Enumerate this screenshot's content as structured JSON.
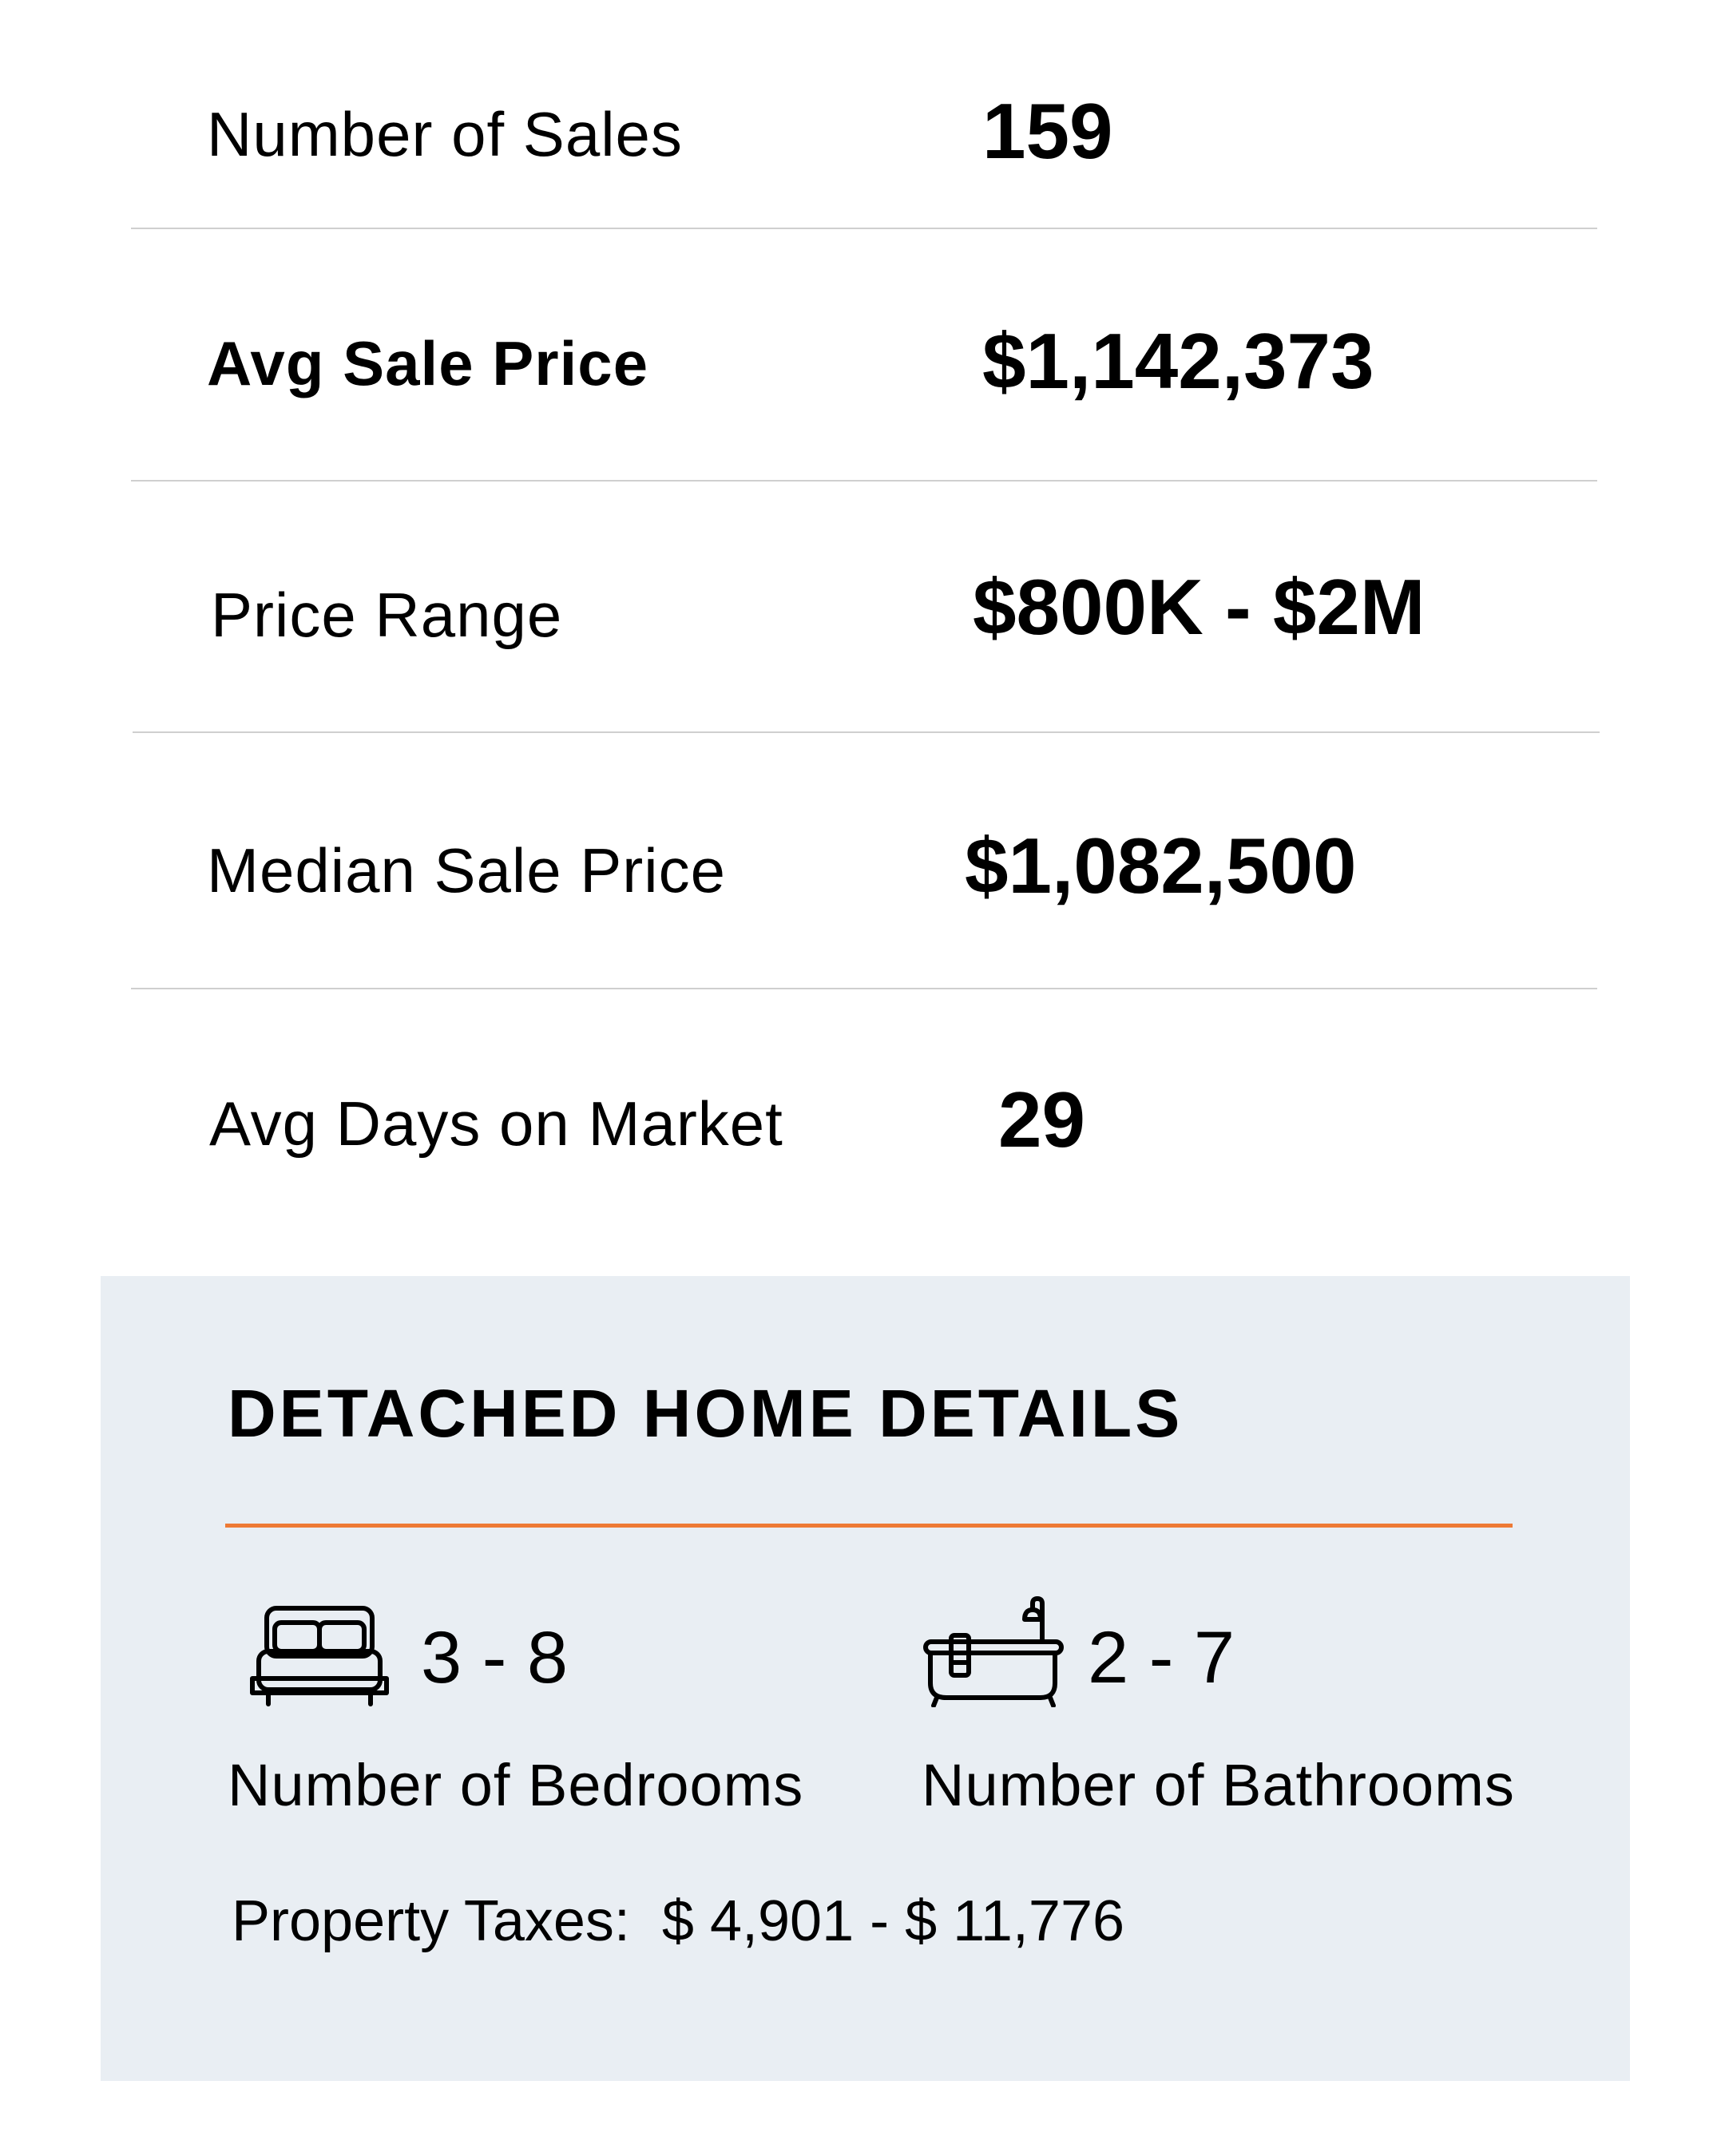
{
  "stats": [
    {
      "label": "Number of Sales",
      "value": "159"
    },
    {
      "label": "Avg Sale Price",
      "value": "$1,142,373"
    },
    {
      "label": "Price Range",
      "value": "$800K - $2M"
    },
    {
      "label": "Median Sale Price",
      "value": "$1,082,500"
    },
    {
      "label": "Avg Days on Market",
      "value": "29"
    }
  ],
  "details": {
    "heading": "DETACHED HOME DETAILS",
    "accent_color": "#ee7a35",
    "background_color": "#e9eef3",
    "bedrooms": {
      "icon": "bed-icon",
      "range": "3 - 8",
      "label": "Number of Bedrooms"
    },
    "bathrooms": {
      "icon": "bathtub-icon",
      "range": "2 - 7",
      "label": "Number of Bathrooms"
    },
    "property_taxes": "Property Taxes:  $ 4,901 - $ 11,776"
  }
}
